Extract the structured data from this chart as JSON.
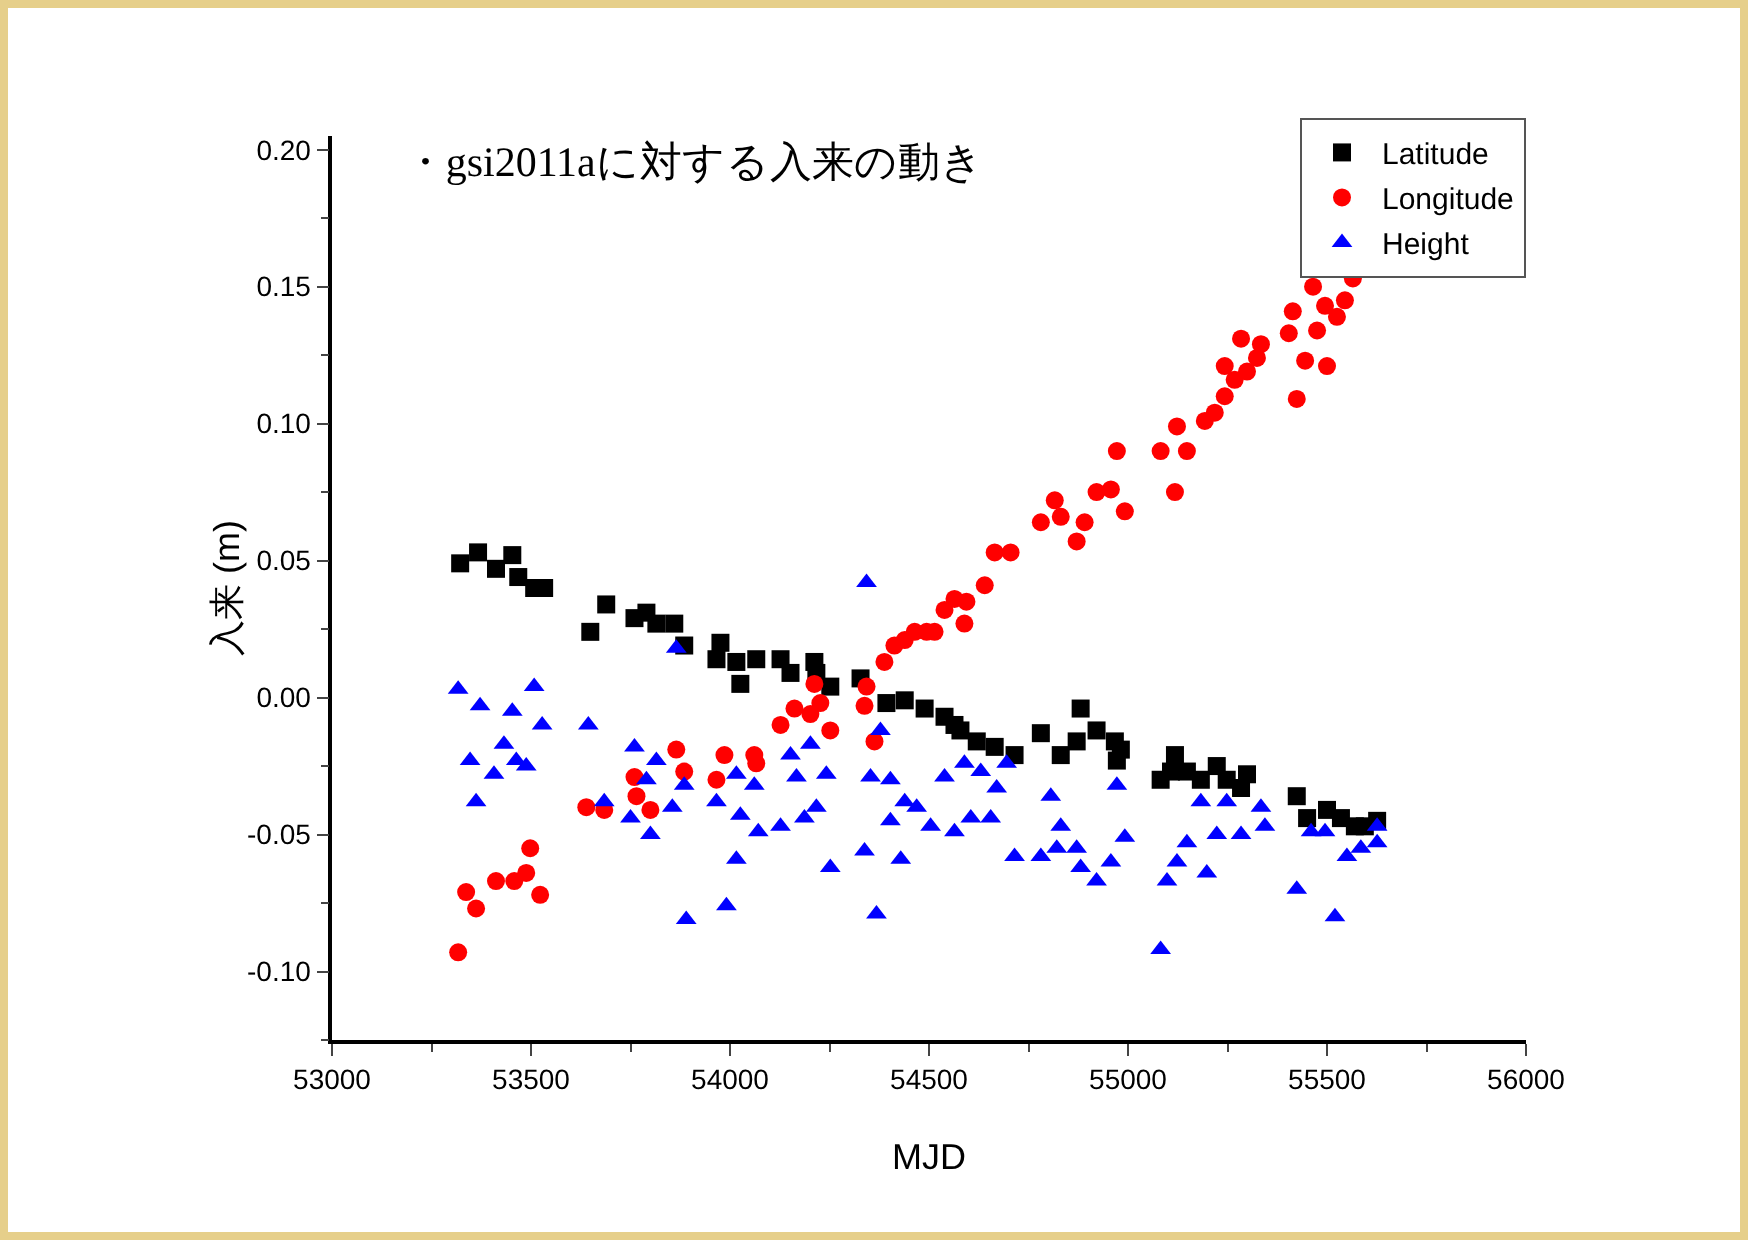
{
  "chart_data": {
    "type": "scatter",
    "title": "・gsi2011aに対する入来の動き",
    "xlabel": "MJD",
    "ylabel": "入来 (m)",
    "xlim": [
      53000,
      56000
    ],
    "xticks": [
      53000,
      53500,
      54000,
      54500,
      55000,
      55500,
      56000
    ],
    "ylim": [
      -0.125,
      0.205
    ],
    "yticks": [
      {
        "value": -0.1,
        "label": "-0.10"
      },
      -0.05,
      {
        "value": 0,
        "label": "0.00"
      },
      0.05,
      {
        "value": 0.1,
        "label": "0.10"
      },
      0.15,
      {
        "value": 0.2,
        "label": "0.20"
      }
    ],
    "grid": false,
    "legend": "top right",
    "series": [
      {
        "name": "Latitude",
        "color": "#000000",
        "marker": "square",
        "x": [
          53322,
          53367,
          53412,
          53453,
          53468,
          53508,
          53533,
          53649,
          53689,
          53760,
          53790,
          53815,
          53860,
          53885,
          53966,
          53976,
          54016,
          54026,
          54066,
          54127,
          54152,
          54212,
          54217,
          54252,
          54328,
          54393,
          54439,
          54489,
          54539,
          54564,
          54579,
          54620,
          54665,
          54715,
          54781,
          54831,
          54871,
          54881,
          54921,
          54967,
          54972,
          54982,
          55082,
          55108,
          55118,
          55148,
          55183,
          55223,
          55248,
          55284,
          55299,
          55424,
          55450,
          55500,
          55535,
          55570,
          55595,
          55626
        ],
        "values": [
          0.049,
          0.053,
          0.047,
          0.052,
          0.044,
          0.04,
          0.04,
          0.024,
          0.034,
          0.029,
          0.031,
          0.027,
          0.027,
          0.019,
          0.014,
          0.02,
          0.013,
          0.005,
          0.014,
          0.014,
          0.009,
          0.013,
          0.009,
          0.004,
          0.007,
          -0.002,
          -0.001,
          -0.004,
          -0.007,
          -0.01,
          -0.012,
          -0.016,
          -0.018,
          -0.021,
          -0.013,
          -0.021,
          -0.016,
          -0.004,
          -0.012,
          -0.016,
          -0.023,
          -0.019,
          -0.03,
          -0.027,
          -0.021,
          -0.027,
          -0.03,
          -0.025,
          -0.03,
          -0.033,
          -0.028,
          -0.036,
          -0.044,
          -0.041,
          -0.044,
          -0.047,
          -0.047,
          -0.045
        ]
      },
      {
        "name": "Longitude",
        "color": "#ff0000",
        "marker": "circle",
        "x": [
          53317,
          53337,
          53362,
          53412,
          53458,
          53488,
          53498,
          53523,
          53639,
          53684,
          53760,
          53765,
          53800,
          53865,
          53885,
          53966,
          53986,
          54061,
          54066,
          54127,
          54162,
          54202,
          54212,
          54227,
          54252,
          54338,
          54343,
          54363,
          54388,
          54413,
          54439,
          54464,
          54494,
          54514,
          54539,
          54564,
          54589,
          54594,
          54640,
          54665,
          54705,
          54781,
          54816,
          54831,
          54871,
          54891,
          54921,
          54957,
          54972,
          54992,
          55082,
          55118,
          55123,
          55148,
          55193,
          55218,
          55243,
          55243,
          55268,
          55284,
          55299,
          55324,
          55334,
          55404,
          55414,
          55424,
          55445,
          55465,
          55475,
          55495,
          55500,
          55525,
          55545,
          55565
        ],
        "values": [
          -0.093,
          -0.071,
          -0.077,
          -0.067,
          -0.067,
          -0.064,
          -0.055,
          -0.072,
          -0.04,
          -0.041,
          -0.029,
          -0.036,
          -0.041,
          -0.019,
          -0.027,
          -0.03,
          -0.021,
          -0.021,
          -0.024,
          -0.01,
          -0.004,
          -0.006,
          0.005,
          -0.002,
          -0.012,
          -0.003,
          0.004,
          -0.016,
          0.013,
          0.019,
          0.021,
          0.024,
          0.024,
          0.024,
          0.032,
          0.036,
          0.027,
          0.035,
          0.041,
          0.053,
          0.053,
          0.064,
          0.072,
          0.066,
          0.057,
          0.064,
          0.075,
          0.076,
          0.09,
          0.068,
          0.09,
          0.075,
          0.099,
          0.09,
          0.101,
          0.104,
          0.11,
          0.121,
          0.116,
          0.131,
          0.119,
          0.124,
          0.129,
          0.133,
          0.141,
          0.109,
          0.123,
          0.15,
          0.134,
          0.143,
          0.121,
          0.139,
          0.145,
          0.153
        ]
      },
      {
        "name": "Height",
        "color": "#0000ff",
        "marker": "triangle",
        "x": [
          53317,
          53347,
          53362,
          53372,
          53407,
          53432,
          53453,
          53463,
          53488,
          53508,
          53528,
          53644,
          53684,
          53750,
          53760,
          53790,
          53800,
          53815,
          53855,
          53865,
          53885,
          53890,
          53966,
          53991,
          54016,
          54016,
          54026,
          54061,
          54071,
          54127,
          54152,
          54167,
          54187,
          54202,
          54217,
          54242,
          54252,
          54338,
          54343,
          54353,
          54368,
          54378,
          54403,
          54403,
          54429,
          54439,
          54469,
          54504,
          54539,
          54564,
          54589,
          54605,
          54630,
          54655,
          54670,
          54695,
          54715,
          54781,
          54806,
          54821,
          54831,
          54871,
          54881,
          54921,
          54957,
          54972,
          54992,
          55082,
          55098,
          55123,
          55148,
          55183,
          55198,
          55223,
          55248,
          55284,
          55334,
          55344,
          55424,
          55460,
          55495,
          55520,
          55550,
          55585,
          55626,
          55626
        ],
        "values": [
          0.003,
          -0.023,
          -0.038,
          -0.003,
          -0.028,
          -0.017,
          -0.005,
          -0.023,
          -0.025,
          0.004,
          -0.01,
          -0.01,
          -0.038,
          -0.044,
          -0.018,
          -0.03,
          -0.05,
          -0.023,
          -0.04,
          0.018,
          -0.032,
          -0.081,
          -0.038,
          -0.076,
          -0.028,
          -0.059,
          -0.043,
          -0.032,
          -0.049,
          -0.047,
          -0.021,
          -0.029,
          -0.044,
          -0.017,
          -0.04,
          -0.028,
          -0.062,
          -0.056,
          0.042,
          -0.029,
          -0.079,
          -0.012,
          -0.03,
          -0.045,
          -0.059,
          -0.038,
          -0.04,
          -0.047,
          -0.029,
          -0.049,
          -0.024,
          -0.044,
          -0.027,
          -0.044,
          -0.033,
          -0.024,
          -0.058,
          -0.058,
          -0.036,
          -0.055,
          -0.047,
          -0.055,
          -0.062,
          -0.067,
          -0.06,
          -0.032,
          -0.051,
          -0.092,
          -0.067,
          -0.06,
          -0.053,
          -0.038,
          -0.064,
          -0.05,
          -0.038,
          -0.05,
          -0.04,
          -0.047,
          -0.07,
          -0.049,
          -0.049,
          -0.08,
          -0.058,
          -0.055,
          -0.053,
          -0.047
        ]
      }
    ]
  }
}
